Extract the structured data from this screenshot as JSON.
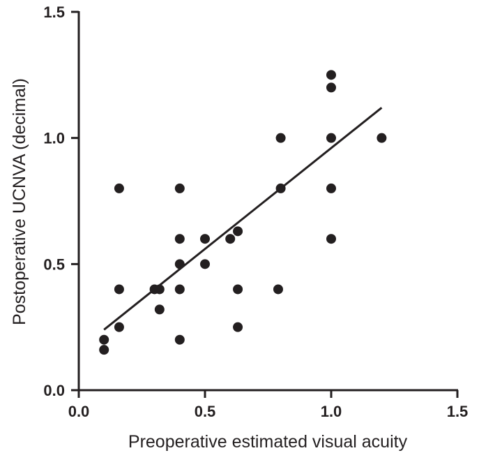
{
  "chart_data": {
    "type": "scatter",
    "title": "",
    "xlabel": "Preoperative estimated visual acuity",
    "ylabel": "Postoperative UCNVA (decimal)",
    "xlim": [
      0.0,
      1.5
    ],
    "ylim": [
      0.0,
      1.5
    ],
    "x_ticks": [
      "0.0",
      "0.5",
      "1.0",
      "1.5"
    ],
    "y_ticks": [
      "0.0",
      "0.5",
      "1.0",
      "1.5"
    ],
    "grid": false,
    "legend": "none",
    "marker_color": "#231f20",
    "points": [
      {
        "x": 0.1,
        "y": 0.2
      },
      {
        "x": 0.1,
        "y": 0.16
      },
      {
        "x": 0.16,
        "y": 0.8
      },
      {
        "x": 0.16,
        "y": 0.4
      },
      {
        "x": 0.16,
        "y": 0.25
      },
      {
        "x": 0.3,
        "y": 0.4
      },
      {
        "x": 0.32,
        "y": 0.4
      },
      {
        "x": 0.32,
        "y": 0.32
      },
      {
        "x": 0.4,
        "y": 0.8
      },
      {
        "x": 0.4,
        "y": 0.6
      },
      {
        "x": 0.4,
        "y": 0.5
      },
      {
        "x": 0.4,
        "y": 0.4
      },
      {
        "x": 0.4,
        "y": 0.2
      },
      {
        "x": 0.5,
        "y": 0.6
      },
      {
        "x": 0.5,
        "y": 0.5
      },
      {
        "x": 0.6,
        "y": 0.6
      },
      {
        "x": 0.63,
        "y": 0.63
      },
      {
        "x": 0.63,
        "y": 0.4
      },
      {
        "x": 0.63,
        "y": 0.25
      },
      {
        "x": 0.79,
        "y": 0.4
      },
      {
        "x": 0.8,
        "y": 1.0
      },
      {
        "x": 0.8,
        "y": 0.8
      },
      {
        "x": 1.0,
        "y": 1.25
      },
      {
        "x": 1.0,
        "y": 1.2
      },
      {
        "x": 1.0,
        "y": 1.0
      },
      {
        "x": 1.0,
        "y": 0.8
      },
      {
        "x": 1.0,
        "y": 0.6
      },
      {
        "x": 1.2,
        "y": 1.0
      }
    ],
    "trend_line": {
      "x": [
        0.1,
        1.2
      ],
      "y": [
        0.24,
        1.12
      ]
    }
  }
}
